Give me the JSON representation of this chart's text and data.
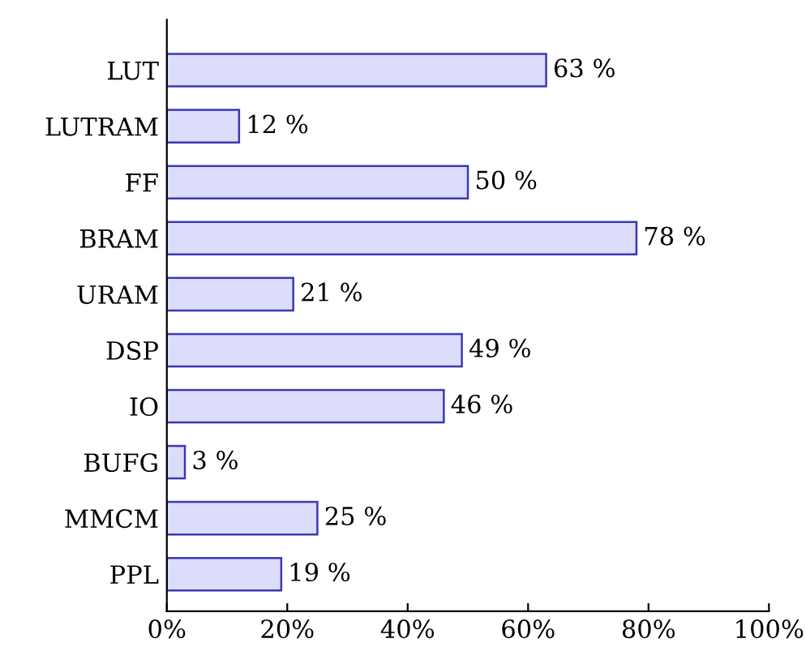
{
  "chart_data": {
    "type": "bar",
    "orientation": "horizontal",
    "categories": [
      "LUT",
      "LUTRAM",
      "FF",
      "BRAM",
      "URAM",
      "DSP",
      "IO",
      "BUFG",
      "MMCM",
      "PPL"
    ],
    "values": [
      63,
      12,
      50,
      78,
      21,
      49,
      46,
      3,
      25,
      19
    ],
    "value_labels": [
      "63 %",
      "12 %",
      "50 %",
      "78 %",
      "21 %",
      "49 %",
      "46 %",
      "3 %",
      "25 %",
      "19 %"
    ],
    "color": "#dcdcfb",
    "xlim": [
      0,
      100
    ],
    "xticks": [
      {
        "value": 0,
        "label": "0%"
      },
      {
        "value": 20,
        "label": "20%"
      },
      {
        "value": 40,
        "label": "40%"
      },
      {
        "value": 60,
        "label": "60%"
      },
      {
        "value": 80,
        "label": "80%"
      },
      {
        "value": 100,
        "label": "100%"
      }
    ],
    "grid": false
  }
}
